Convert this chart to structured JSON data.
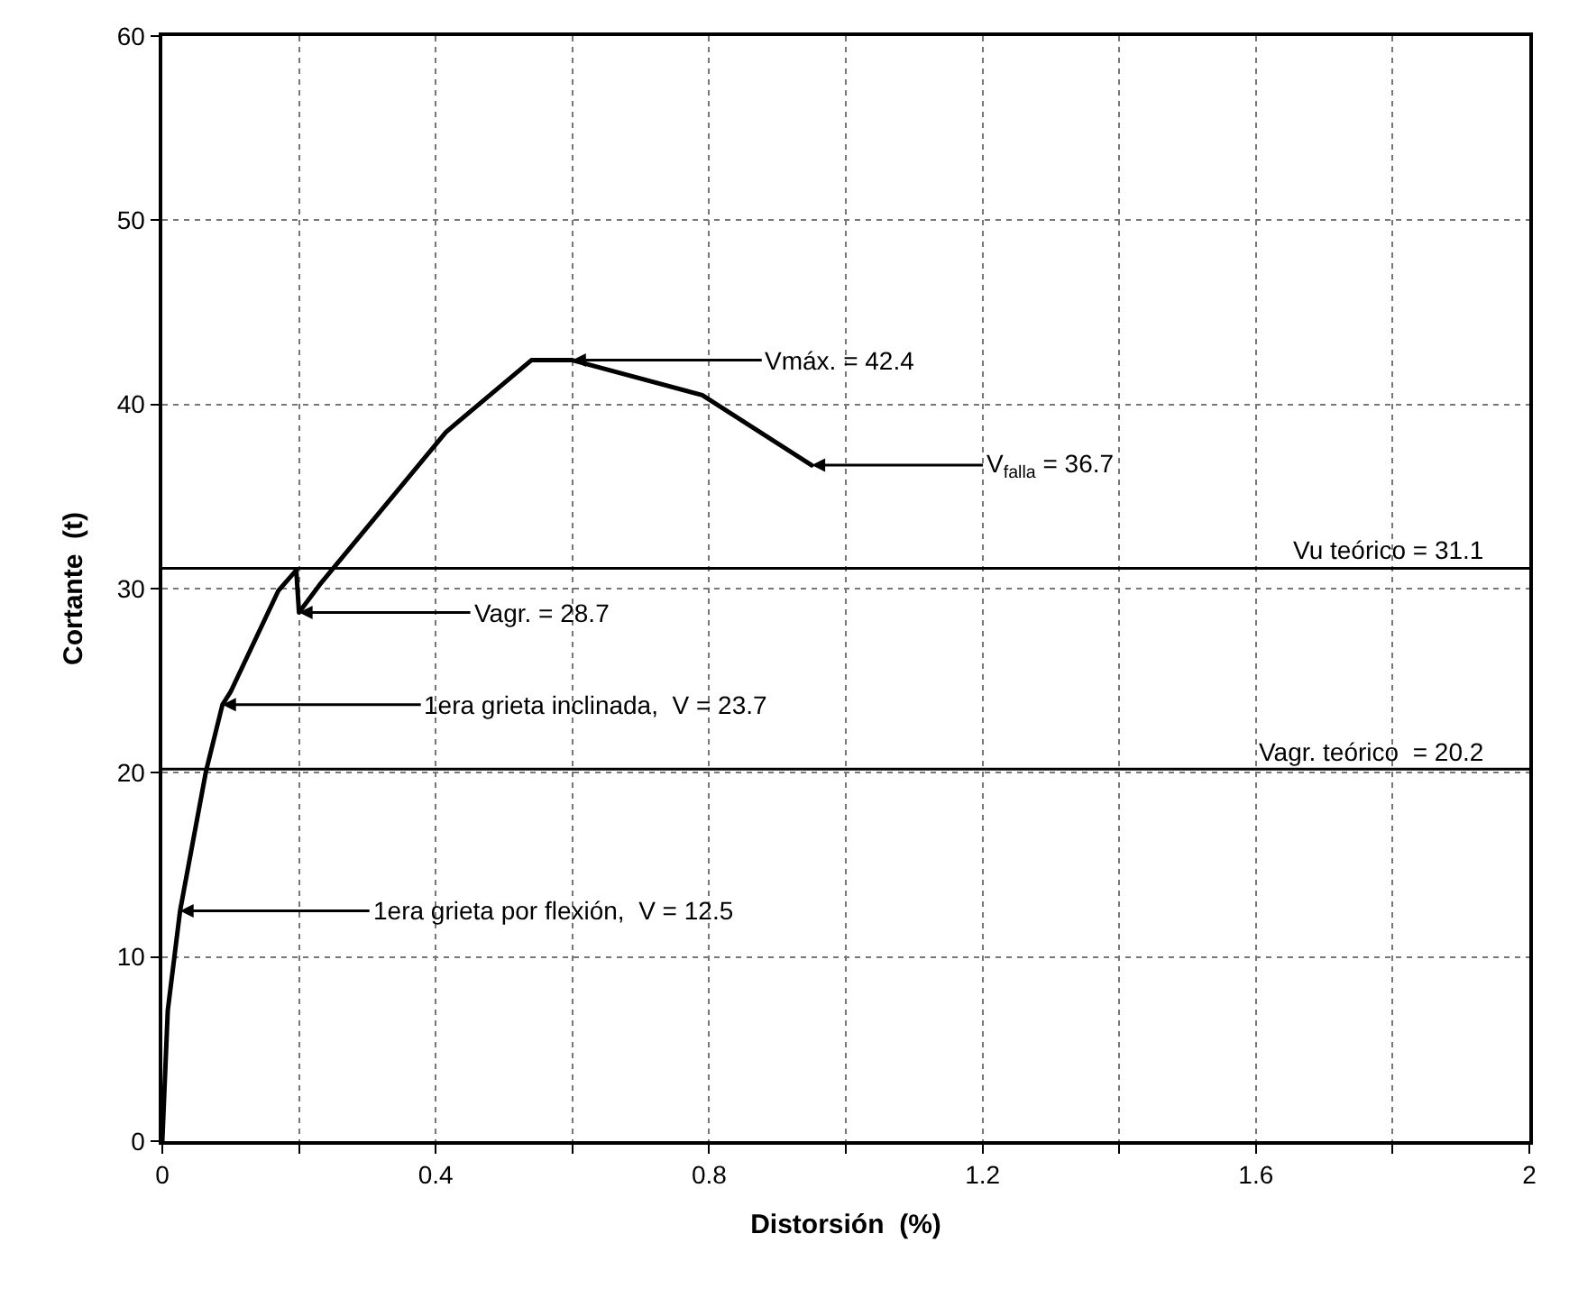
{
  "chart_data": {
    "type": "line",
    "xlabel": "Distorsión  (%)",
    "ylabel": "Cortante  (t)",
    "x": [
      0,
      0.008,
      0.026,
      0.064,
      0.088,
      0.1,
      0.17,
      0.196,
      0.2,
      0.23,
      0.415,
      0.54,
      0.6,
      0.79,
      0.95
    ],
    "series": [
      {
        "color": "#000000",
        "values": [
          0,
          7.1,
          12.5,
          20.1,
          23.7,
          24.4,
          29.9,
          31.0,
          28.7,
          30.2,
          38.5,
          42.4,
          42.4,
          40.5,
          36.7
        ]
      }
    ],
    "xlim": [
      0,
      2
    ],
    "xticks": [
      0,
      {
        "value": 0.2,
        "label": null
      },
      0.4,
      {
        "value": 0.6,
        "label": null
      },
      0.8,
      {
        "value": 1.0,
        "label": null
      },
      1.2,
      {
        "value": 1.4,
        "label": null
      },
      1.6,
      {
        "value": 1.8,
        "label": null
      },
      2
    ],
    "ylim": [
      0,
      60
    ],
    "yticks": [
      0,
      10,
      20,
      30,
      40,
      50,
      60
    ],
    "grid": true,
    "marker": "none",
    "line_style": "solid",
    "ref_lines": [
      {
        "axis": "y",
        "value": 31.1,
        "label": "Vu teórico = 31.1",
        "color": "#000000"
      },
      {
        "axis": "y",
        "value": 20.2,
        "label": "Vagr. teórico  = 20.2",
        "color": "#000000"
      }
    ],
    "annotations": [
      {
        "text": "Vmáx. = 42.4",
        "x": 0.6,
        "y": 42.4
      },
      {
        "text": "V$_{falla}$ = 36.7",
        "x": 0.95,
        "y": 36.7
      },
      {
        "text": "Vagr. = 28.7",
        "x": 0.2,
        "y": 28.7
      },
      {
        "text": "1era grieta inclinada,  V = 23.7",
        "x": 0.088,
        "y": 23.7
      },
      {
        "text": "1era grieta por flexión,  V = 12.5",
        "x": 0.026,
        "y": 12.5
      }
    ]
  }
}
